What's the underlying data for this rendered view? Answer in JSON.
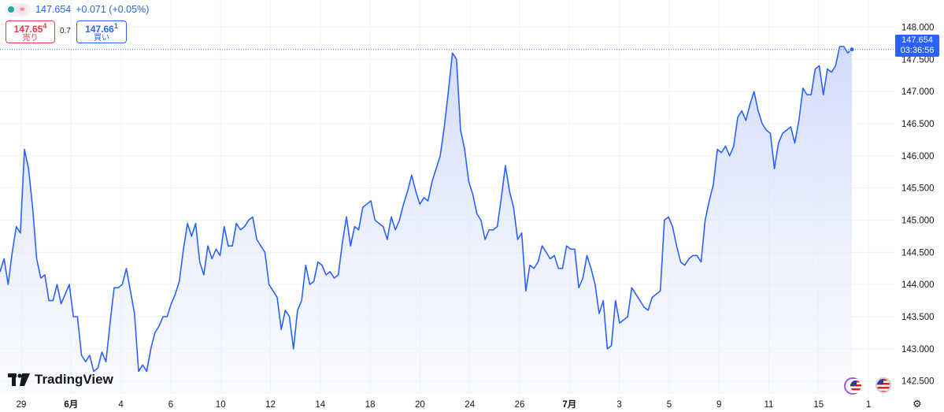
{
  "header": {
    "last_price": "147.654",
    "change": "+0.071 (+0.05%)",
    "wave_icon": "≈"
  },
  "quotes": {
    "sell_main": "147.65",
    "sell_sup": "4",
    "sell_label": "売り",
    "spread": "0.7",
    "buy_main": "147.66",
    "buy_sup": "1",
    "buy_label": "買い"
  },
  "price_label": {
    "value": "147.654",
    "countdown": "03:36:56"
  },
  "brand": {
    "name": "TradingView"
  },
  "colors": {
    "line": "#2962ff",
    "fill_top": "#cdd8fb",
    "sell": "#f23645",
    "buy": "#2962ff"
  },
  "chart_data": {
    "type": "area",
    "ylim": [
      142.3,
      148.3
    ],
    "yticks": [
      142.5,
      143.0,
      143.5,
      144.0,
      144.5,
      145.0,
      145.5,
      146.0,
      146.5,
      147.0,
      147.5,
      148.0
    ],
    "ytick_labels": [
      "142.500",
      "143.000",
      "143.500",
      "144.000",
      "144.500",
      "145.000",
      "145.500",
      "146.000",
      "146.500",
      "147.000",
      "147.500",
      "148.000"
    ],
    "xticks": [
      {
        "label": "29",
        "bold": false
      },
      {
        "label": "6月",
        "bold": true
      },
      {
        "label": "4",
        "bold": false
      },
      {
        "label": "6",
        "bold": false
      },
      {
        "label": "10",
        "bold": false
      },
      {
        "label": "12",
        "bold": false
      },
      {
        "label": "14",
        "bold": false
      },
      {
        "label": "18",
        "bold": false
      },
      {
        "label": "20",
        "bold": false
      },
      {
        "label": "24",
        "bold": false
      },
      {
        "label": "26",
        "bold": false
      },
      {
        "label": "7月",
        "bold": true
      },
      {
        "label": "3",
        "bold": false
      },
      {
        "label": "5",
        "bold": false
      },
      {
        "label": "9",
        "bold": false
      },
      {
        "label": "11",
        "bold": false
      },
      {
        "label": "15",
        "bold": false
      },
      {
        "label": "1",
        "bold": false
      }
    ],
    "last_value": 147.654,
    "values": [
      144.2,
      144.4,
      144.0,
      144.5,
      144.9,
      144.8,
      146.1,
      145.8,
      145.2,
      144.4,
      144.1,
      144.15,
      143.75,
      143.75,
      144.0,
      143.7,
      143.85,
      144.0,
      143.5,
      143.5,
      142.9,
      142.8,
      142.9,
      142.65,
      142.7,
      142.95,
      142.8,
      143.4,
      143.95,
      143.95,
      144.0,
      144.25,
      143.9,
      143.55,
      142.65,
      142.75,
      142.65,
      143.0,
      143.25,
      143.35,
      143.5,
      143.5,
      143.7,
      143.85,
      144.05,
      144.55,
      144.95,
      144.75,
      144.95,
      144.35,
      144.15,
      144.6,
      144.4,
      144.55,
      144.45,
      144.9,
      144.6,
      144.6,
      144.95,
      144.85,
      144.9,
      145.0,
      145.05,
      144.7,
      144.6,
      144.5,
      144.0,
      143.9,
      143.8,
      143.3,
      143.6,
      143.5,
      143.0,
      143.6,
      143.75,
      144.3,
      144.0,
      144.05,
      144.35,
      144.3,
      144.15,
      144.2,
      144.1,
      144.15,
      144.65,
      145.05,
      144.6,
      144.9,
      144.85,
      145.2,
      145.25,
      145.3,
      145.0,
      144.95,
      144.9,
      144.7,
      145.05,
      144.85,
      145.0,
      145.25,
      145.45,
      145.7,
      145.45,
      145.25,
      145.35,
      145.3,
      145.6,
      145.8,
      146.0,
      146.45,
      147.0,
      147.6,
      147.5,
      146.4,
      146.1,
      145.6,
      145.4,
      145.1,
      145.0,
      144.7,
      144.85,
      144.85,
      144.9,
      145.35,
      145.85,
      145.45,
      145.2,
      144.7,
      144.8,
      143.9,
      144.3,
      144.25,
      144.35,
      144.6,
      144.5,
      144.4,
      144.45,
      144.25,
      144.25,
      144.6,
      144.55,
      144.55,
      143.95,
      144.1,
      144.45,
      144.25,
      144.0,
      143.55,
      143.75,
      143.0,
      143.05,
      143.75,
      143.4,
      143.45,
      143.5,
      143.95,
      143.85,
      143.75,
      143.65,
      143.6,
      143.8,
      143.85,
      143.9,
      145.0,
      145.05,
      144.9,
      144.6,
      144.35,
      144.3,
      144.4,
      144.45,
      144.45,
      144.35,
      145.0,
      145.3,
      145.55,
      146.1,
      146.05,
      146.15,
      146.0,
      146.15,
      146.6,
      146.7,
      146.55,
      146.8,
      147.0,
      146.7,
      146.5,
      146.4,
      146.35,
      145.8,
      146.2,
      146.35,
      146.4,
      146.45,
      146.2,
      146.55,
      147.05,
      146.95,
      146.95,
      147.35,
      147.4,
      146.95,
      147.35,
      147.3,
      147.4,
      147.7,
      147.7,
      147.6,
      147.654
    ]
  }
}
